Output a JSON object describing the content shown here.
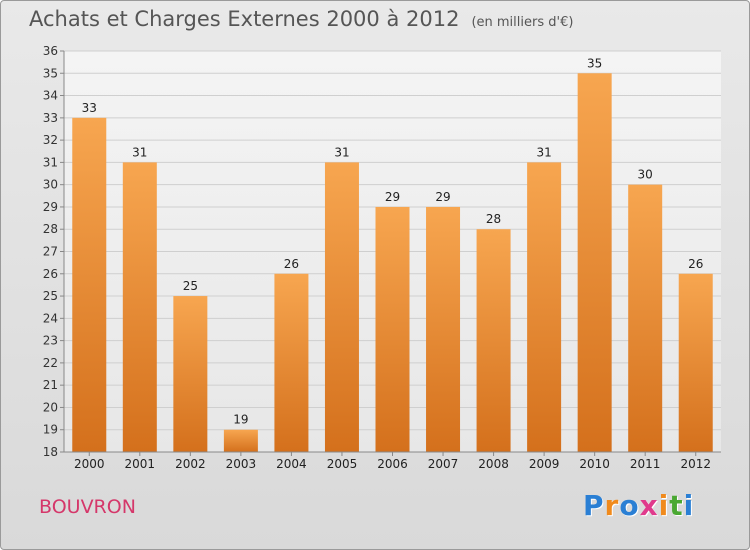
{
  "header": {
    "title": "Achats et Charges Externes 2000 à 2012",
    "unit": "(en milliers d'€)"
  },
  "commune": "BOUVRON",
  "logo": {
    "letters": [
      "P",
      "r",
      "o",
      "x",
      "i",
      "t",
      "i"
    ],
    "colors": [
      "#2a7fd4",
      "#f08a1c",
      "#2a7fd4",
      "#e03a8c",
      "#f08a1c",
      "#4aa832",
      "#2a7fd4"
    ]
  },
  "chart_data": {
    "type": "bar",
    "title": "Achats et Charges Externes 2000 à 2012",
    "subtitle": "(en milliers d'€)",
    "categories": [
      "2000",
      "2001",
      "2002",
      "2003",
      "2004",
      "2005",
      "2006",
      "2007",
      "2008",
      "2009",
      "2010",
      "2011",
      "2012"
    ],
    "values": [
      33,
      31,
      25,
      19,
      26,
      31,
      29,
      29,
      28,
      31,
      35,
      30,
      26
    ],
    "ylim": [
      18,
      36
    ],
    "yticks": [
      18,
      19,
      20,
      21,
      22,
      23,
      24,
      25,
      26,
      27,
      28,
      29,
      30,
      31,
      32,
      33,
      34,
      35,
      36
    ],
    "grid": true,
    "bar_color": "#f0922f",
    "data_labels": true
  }
}
